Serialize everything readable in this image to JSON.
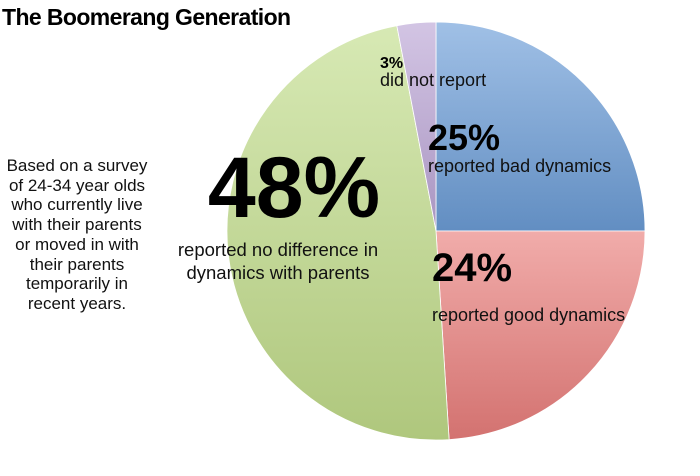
{
  "chart_data": {
    "type": "pie",
    "title": "The Boomerang Generation",
    "note": "Based on a survey of 24-34 year olds who currently live with their parents or moved in with their parents temporarily in recent years.",
    "slices": [
      {
        "value": 25,
        "label": "25%",
        "desc_lines": [
          "reported bad dynamics"
        ],
        "color": "#6d9ed8"
      },
      {
        "value": 24,
        "label": "24%",
        "desc_lines": [
          "reported good dynamics"
        ],
        "color": "#ea7f7c"
      },
      {
        "value": 48,
        "label": "48%",
        "desc_lines": [
          "reported no difference in",
          "dynamics with parents"
        ],
        "color": "#c2dd8b"
      },
      {
        "value": 3,
        "label": "3%",
        "desc_lines": [
          "did not report"
        ],
        "color": "#bca6d6"
      }
    ],
    "start_angle_deg": 0,
    "direction": "clockwise"
  }
}
